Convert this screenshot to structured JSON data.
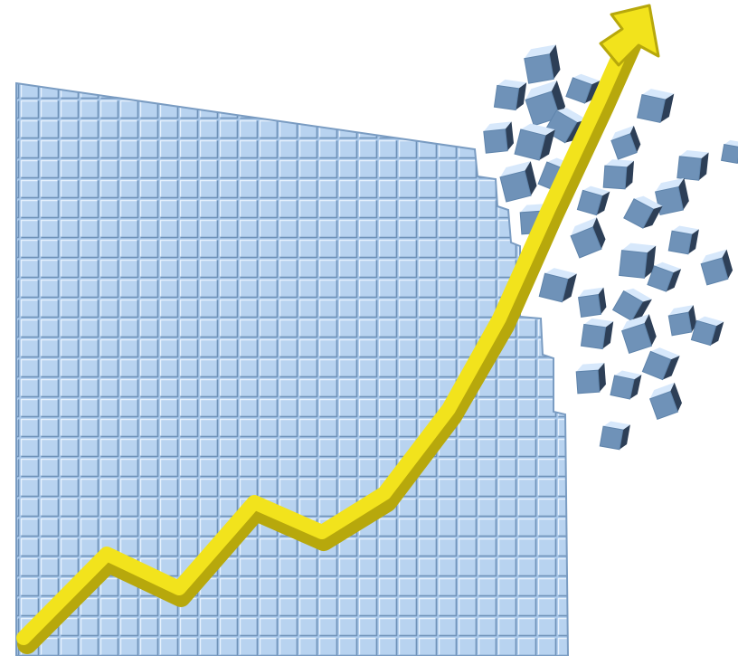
{
  "image": {
    "subject": "growth-arrow-over-cube-wall",
    "colors": {
      "background": "#ffffff",
      "cube_face": "#a9c8ea",
      "cube_light": "#d7e8fb",
      "cube_edge": "#5f84ab",
      "cube_dark": "#6f92b8",
      "arrow": "#f2e31c",
      "arrow_shadow": "#b7a80c"
    },
    "icons": [
      "cube-icon",
      "arrow-icon"
    ]
  }
}
